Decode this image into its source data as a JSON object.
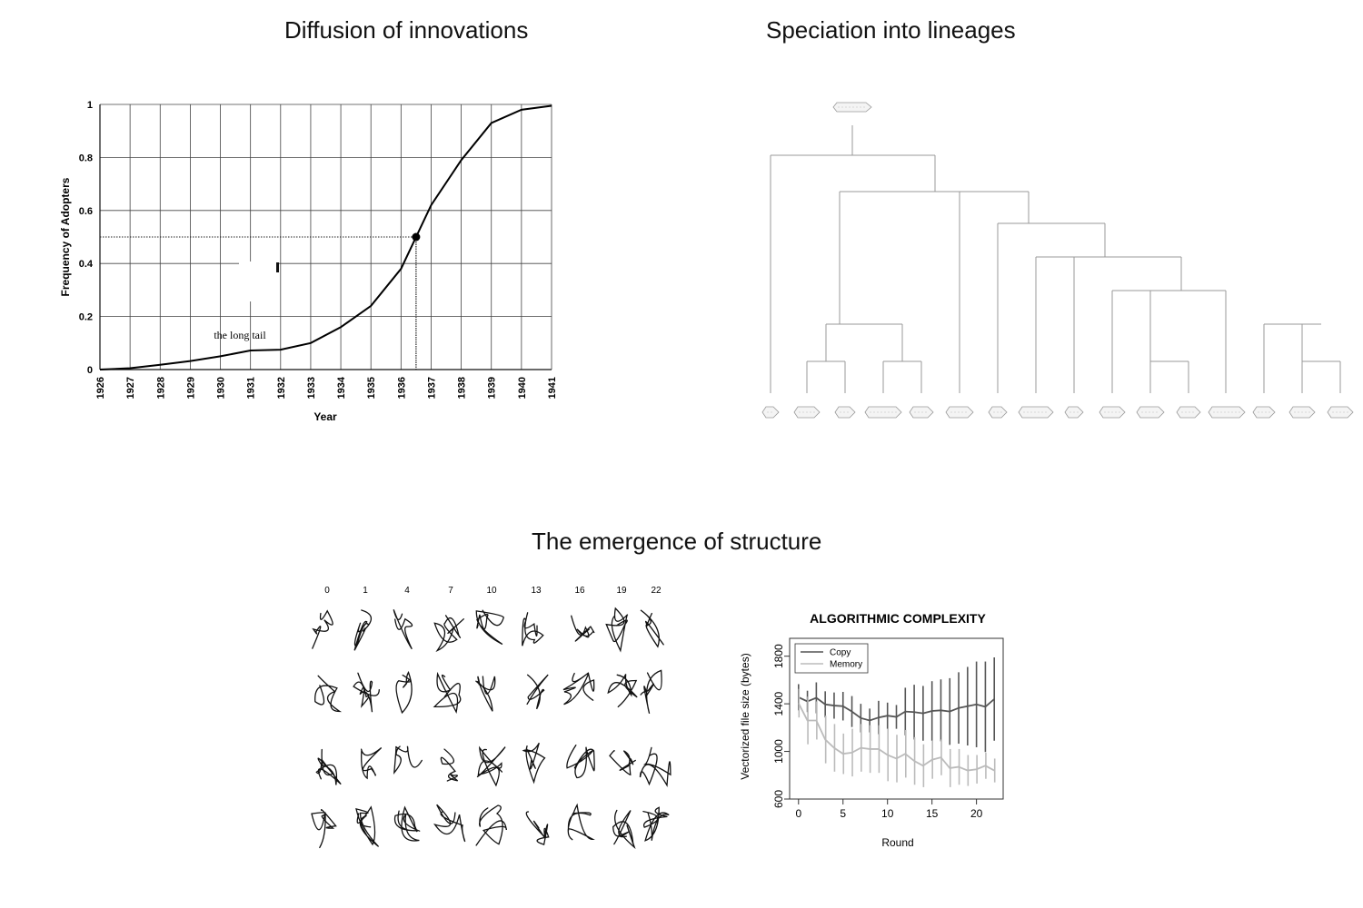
{
  "panels": {
    "diffusion_title": "Diffusion of innovations",
    "speciation_title": "Speciation into lineages",
    "structure_title": "The emergence of structure"
  },
  "chart_data": [
    {
      "type": "line",
      "title": "",
      "xlabel": "Year",
      "ylabel": "Frequency of Adopters",
      "x": [
        1926,
        1927,
        1928,
        1929,
        1930,
        1931,
        1932,
        1933,
        1934,
        1935,
        1936,
        1937,
        1938,
        1939,
        1940,
        1941
      ],
      "y": [
        0,
        0.005,
        0.018,
        0.032,
        0.05,
        0.072,
        0.075,
        0.1,
        0.16,
        0.24,
        0.38,
        0.62,
        0.79,
        0.93,
        0.98,
        0.995
      ],
      "xlim": [
        1926,
        1941
      ],
      "ylim": [
        0,
        1
      ],
      "yticks": [
        "0",
        "0.2",
        "0.4",
        "0.6",
        "0.8",
        "1"
      ],
      "grid": true,
      "highlight_point": {
        "x": 1936.5,
        "y": 0.5
      },
      "annotation": "the long tail"
    },
    {
      "type": "line",
      "title": "ALGORITHMIC COMPLEXITY",
      "xlabel": "Round",
      "ylabel": "Vectorized file size (bytes)",
      "xlim": [
        -1,
        23
      ],
      "ylim": [
        600,
        1950
      ],
      "xticks": [
        "0",
        "5",
        "10",
        "15",
        "20"
      ],
      "yticks": [
        "600",
        "1000",
        "1400",
        "1800"
      ],
      "grid": false,
      "legend": "top-left",
      "series": [
        {
          "name": "Copy",
          "color": "#555555",
          "x": [
            0,
            1,
            2,
            3,
            4,
            5,
            6,
            7,
            8,
            9,
            10,
            11,
            12,
            13,
            14,
            15,
            16,
            17,
            18,
            19,
            20,
            21,
            22
          ],
          "y": [
            1455,
            1420,
            1450,
            1395,
            1385,
            1380,
            1335,
            1280,
            1260,
            1285,
            1300,
            1290,
            1335,
            1330,
            1320,
            1340,
            1345,
            1335,
            1365,
            1380,
            1395,
            1375,
            1440
          ],
          "err": [
            110,
            90,
            130,
            110,
            110,
            120,
            130,
            120,
            100,
            140,
            110,
            100,
            200,
            230,
            230,
            250,
            260,
            280,
            300,
            330,
            360,
            380,
            350
          ]
        },
        {
          "name": "Memory",
          "color": "#bbbbbb",
          "x": [
            0,
            1,
            2,
            3,
            4,
            5,
            6,
            7,
            8,
            9,
            10,
            11,
            12,
            13,
            14,
            15,
            16,
            17,
            18,
            19,
            20,
            21,
            22
          ],
          "y": [
            1405,
            1260,
            1260,
            1100,
            1030,
            980,
            990,
            1030,
            1020,
            1020,
            970,
            940,
            980,
            920,
            880,
            930,
            950,
            860,
            870,
            840,
            850,
            880,
            840
          ],
          "err": [
            120,
            200,
            160,
            200,
            200,
            170,
            200,
            200,
            200,
            200,
            220,
            200,
            200,
            200,
            180,
            160,
            150,
            160,
            150,
            130,
            120,
            110,
            100
          ]
        }
      ]
    }
  ],
  "sketch_rounds": [
    "0",
    "1",
    "4",
    "7",
    "10",
    "13",
    "16",
    "19",
    "22"
  ]
}
